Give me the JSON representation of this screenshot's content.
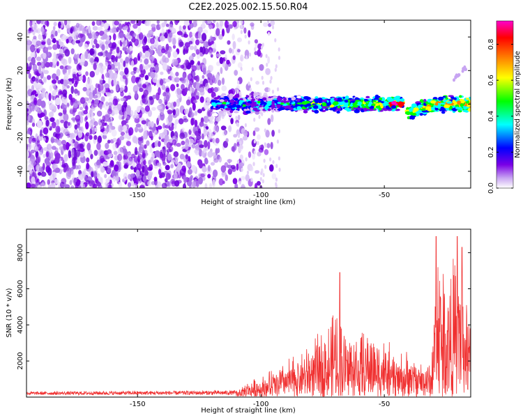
{
  "title": "C2E2.2025.002.15.50.R04",
  "chart_data": [
    {
      "type": "heatmap",
      "xlabel": "Height of straight line (km)",
      "ylabel": "Frequency (Hz)",
      "xlim": [
        -195,
        -15
      ],
      "ylim": [
        -50,
        50
      ],
      "xticks": [
        -150,
        -100,
        -50
      ],
      "yticks": [
        -40,
        -20,
        0,
        20,
        40
      ],
      "colorbar": {
        "label": "Normalized spectral amplitude",
        "range": [
          0,
          0.93
        ],
        "ticks": [
          "0.0",
          "0.2",
          "0.4",
          "0.6",
          "0.8"
        ],
        "colormap": [
          "#ffffff",
          "#d9b8f5",
          "#7a00e6",
          "#0000ff",
          "#00ffff",
          "#00ff00",
          "#ffff00",
          "#ff8000",
          "#ff0000",
          "#ff00cc"
        ]
      },
      "features": {
        "noise_region_x": [
          -195,
          -105
        ],
        "signal_band": [
          {
            "x": -120,
            "y": 0
          },
          {
            "x": -50,
            "y": 0
          },
          {
            "x": -42,
            "y": 1
          },
          {
            "x": -40,
            "y": -5
          },
          {
            "x": -30,
            "y": 0
          },
          {
            "x": -15,
            "y": 0
          }
        ],
        "peak": {
          "x": -45,
          "y": 0,
          "value": 0.93
        }
      }
    },
    {
      "type": "line",
      "xlabel": "Height of straight line (km)",
      "ylabel": "SNR (10 * v/v)",
      "xlim": [
        -195,
        -15
      ],
      "ylim": [
        0,
        9300
      ],
      "xticks": [
        -150,
        -100,
        -50
      ],
      "yticks": [
        2000,
        4000,
        6000,
        8000
      ],
      "color": "#f03030",
      "envelope": [
        {
          "x": -195,
          "y": 300
        },
        {
          "x": -110,
          "y": 400
        },
        {
          "x": -105,
          "y": 800
        },
        {
          "x": -95,
          "y": 1500
        },
        {
          "x": -85,
          "y": 2400
        },
        {
          "x": -75,
          "y": 3500
        },
        {
          "x": -70,
          "y": 4600
        },
        {
          "x": -60,
          "y": 3400
        },
        {
          "x": -55,
          "y": 3800
        },
        {
          "x": -45,
          "y": 2400
        },
        {
          "x": -35,
          "y": 2200
        },
        {
          "x": -31,
          "y": 1800
        },
        {
          "x": -29,
          "y": 8800
        },
        {
          "x": -25,
          "y": 6600
        },
        {
          "x": -20,
          "y": 7800
        },
        {
          "x": -15,
          "y": 4200
        }
      ],
      "peaks": [
        {
          "x": -68,
          "y": 6900
        },
        {
          "x": -29,
          "y": 8900
        },
        {
          "x": -20.5,
          "y": 8900
        },
        {
          "x": -18.5,
          "y": 8300
        }
      ]
    }
  ]
}
